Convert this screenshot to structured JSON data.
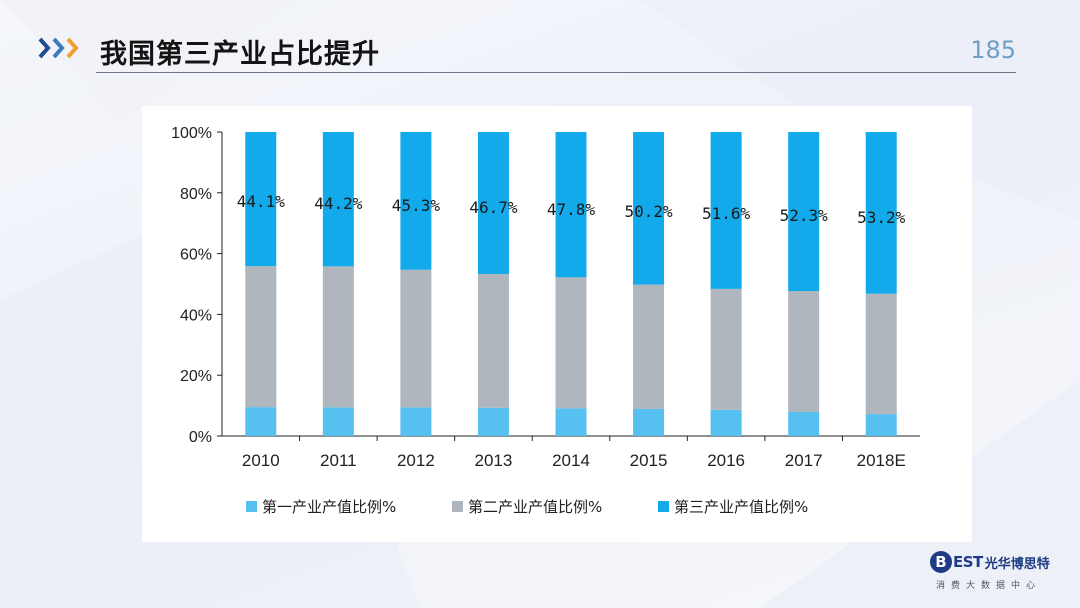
{
  "header": {
    "title": "我国第三产业占比提升",
    "page_number": "185"
  },
  "logo": {
    "letter": "B",
    "est": "EST",
    "name": "光华博思特",
    "tagline": "消费大数据中心"
  },
  "colors": {
    "primary": "#56c0f0",
    "secondary": "#afb6bd",
    "tertiary": "#12aaeb",
    "title": "#141414",
    "page_number": "#6f9fc7",
    "logo": "#1e3c86"
  },
  "chart_data": {
    "type": "bar",
    "stacked": true,
    "categories": [
      "2010",
      "2011",
      "2012",
      "2013",
      "2014",
      "2015",
      "2016",
      "2017",
      "2018E"
    ],
    "series": [
      {
        "name": "第一产业产值比例%",
        "color": "#56c0f0",
        "values": [
          9.5,
          9.4,
          9.4,
          9.3,
          9.1,
          8.9,
          8.6,
          7.9,
          7.2
        ]
      },
      {
        "name": "第二产业产值比例%",
        "color": "#afb6bd",
        "values": [
          46.4,
          46.4,
          45.3,
          44.0,
          43.1,
          40.9,
          39.8,
          39.8,
          39.6
        ]
      },
      {
        "name": "第三产业产值比例%",
        "color": "#12aaeb",
        "values": [
          44.1,
          44.2,
          45.3,
          46.7,
          47.8,
          50.2,
          51.6,
          52.3,
          53.2
        ]
      }
    ],
    "data_labels": [
      "44.1%",
      "44.2%",
      "45.3%",
      "46.7%",
      "47.8%",
      "50.2%",
      "51.6%",
      "52.3%",
      "53.2%"
    ],
    "y_ticks": [
      "0%",
      "20%",
      "40%",
      "60%",
      "80%",
      "100%"
    ],
    "ylim": [
      0,
      100
    ],
    "grid": false,
    "legend_position": "bottom"
  }
}
